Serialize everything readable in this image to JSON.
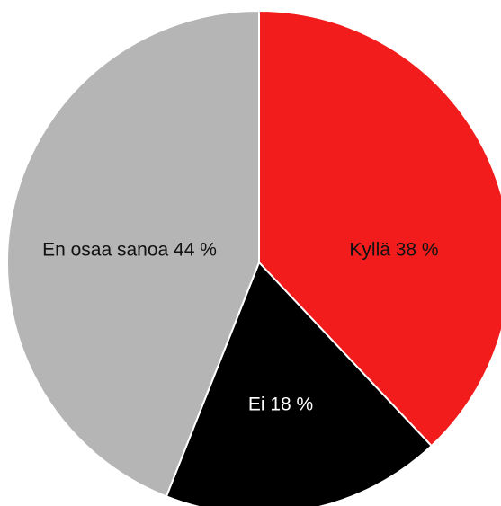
{
  "chart_data": {
    "type": "pie",
    "slices": [
      {
        "label": "Kyllä",
        "value": 38,
        "display": "Kyllä 38 %",
        "color": "#f21c1c",
        "text_color": "#111111"
      },
      {
        "label": "Ei",
        "value": 18,
        "display": "Ei 18 %",
        "color": "#000000",
        "text_color": "#ffffff"
      },
      {
        "label": "En osaa sanoa",
        "value": 44,
        "display": "En osaa sanoa 44 %",
        "color": "#b5b5b5",
        "text_color": "#111111"
      }
    ],
    "start": "12 o'clock",
    "direction": "clockwise",
    "slice_border_color": "#ffffff"
  }
}
